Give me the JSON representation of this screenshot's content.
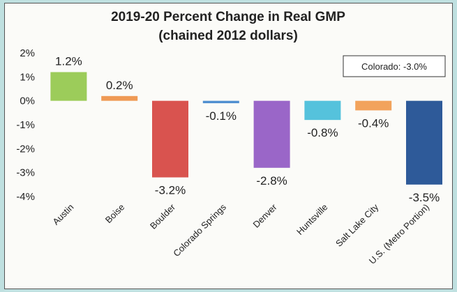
{
  "chart_data": {
    "type": "bar",
    "title": "2019-20 Percent Change in Real GMP",
    "subtitle": "(chained 2012 dollars)",
    "categories": [
      "Austin",
      "Boise",
      "Boulder",
      "Colorado Springs",
      "Denver",
      "Huntsville",
      "Salt Lake City",
      "U.S. (Metro Portion)"
    ],
    "values": [
      1.2,
      0.2,
      -3.2,
      -0.1,
      -2.8,
      -0.8,
      -0.4,
      -3.5
    ],
    "data_labels": [
      "1.2%",
      "0.2%",
      "-3.2%",
      "-0.1%",
      "-2.8%",
      "-0.8%",
      "-0.4%",
      "-3.5%"
    ],
    "bar_colors": [
      "#9ccc5a",
      "#ef9a55",
      "#d9534f",
      "#4f8fd0",
      "#9a66c8",
      "#55c2dc",
      "#f2a35c",
      "#2e5a99"
    ],
    "ylim": [
      -4,
      2
    ],
    "ytick_labels": [
      "2%",
      "1%",
      "0%",
      "-1%",
      "-2%",
      "-3%",
      "-4%"
    ],
    "xlabel": "",
    "ylabel": "",
    "grid": false,
    "annotation": "Colorado: -3.0%"
  }
}
